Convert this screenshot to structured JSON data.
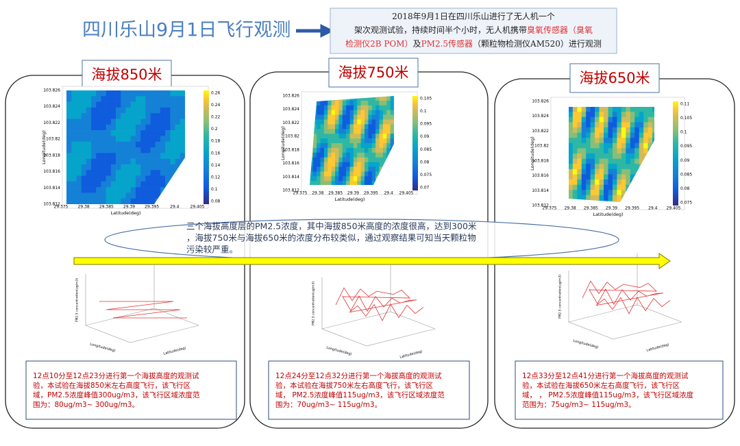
{
  "header": {
    "title": "四川乐山9月1日飞行观测",
    "summary_lines": [
      [
        {
          "text": "2018年9月1日在四川乐山进行了无人机一个",
          "color": "#222222"
        }
      ],
      [
        {
          "text": "架次观测试验，持续时间半个小时，无人机携带",
          "color": "#222222"
        },
        {
          "text": "臭氧传感器（臭氧",
          "color": "#e03030"
        }
      ],
      [
        {
          "text": "检测仪2B POM）",
          "color": "#e03030"
        },
        {
          "text": "及",
          "color": "#222222"
        },
        {
          "text": "PM2.5传感器",
          "color": "#e03030"
        },
        {
          "text": "（颗粒物检测仪AM520）进行观测",
          "color": "#222222"
        }
      ]
    ]
  },
  "panels": [
    {
      "label": "海拔850米",
      "heatmap": {
        "y_label": "Longitude(deg)",
        "x_label": "Latitude(deg)",
        "xticks": [
          "29.375",
          "29.38",
          "29.385",
          "29.39",
          "29.395",
          "29.4",
          "29.405"
        ],
        "yticks": [
          "103.812",
          "103.814",
          "103.816",
          "103.818",
          "103.82",
          "103.822",
          "103.824",
          "103.826"
        ],
        "colorbar_ticks": [
          "0.08",
          "0.1",
          "0.12",
          "0.14",
          "0.16",
          "0.18",
          "0.2",
          "0.22",
          "0.24",
          "0.26"
        ]
      },
      "plot3d": {
        "z_label": "PM2.5 concentration(ug/m3)",
        "x_label": "Longitude(deg)",
        "y_label": "Latitude(deg)"
      },
      "description": [
        "12点10分至12点23分进行第一个海拔高度的观测试",
        "验，本试验在海拔850米左右高度飞行，该飞行区",
        "域，PM2.5浓度峰值300ug/m3，该飞行区域浓度范",
        "围为：80ug/m3~ 300ug/m3。"
      ]
    },
    {
      "label": "海拔750米",
      "heatmap": {
        "y_label": "Longitude(deg)",
        "x_label": "Latitude(deg)",
        "xticks": [
          "29.375",
          "29.38",
          "29.385",
          "29.39",
          "29.395",
          "29.4",
          "29.405"
        ],
        "yticks": [
          "103.812",
          "103.814",
          "103.816",
          "103.818",
          "103.82",
          "103.822",
          "103.824",
          "103.826"
        ],
        "colorbar_ticks": [
          "0.07",
          "0.075",
          "0.08",
          "0.085",
          "0.09",
          "0.095",
          "0.1",
          "0.105"
        ]
      },
      "plot3d": {
        "z_label": "PM2.5 concentration(ug/m3)",
        "x_label": "Longitude(deg)",
        "y_label": "Latitude(deg)"
      },
      "description": [
        "12点24分至12点32分进行第一个海拔高度的观测试",
        "验，本试验在海拔750米左右高度飞行，该飞行区",
        "域，  PM2.5浓度峰值115ug/m3，该飞行区域浓度范",
        "围为：70ug/m3~ 115ug/m3。"
      ]
    },
    {
      "label": "海拔650米",
      "heatmap": {
        "y_label": "Longitude(deg)",
        "x_label": "Latitude(deg)",
        "xticks": [
          "29.375",
          "29.38",
          "29.385",
          "29.39",
          "29.395",
          "29.4",
          "29.405"
        ],
        "yticks": [
          "103.812",
          "103.814",
          "103.816",
          "103.818",
          "103.82",
          "103.822",
          "103.824",
          "103.826"
        ],
        "colorbar_ticks": [
          "0.075",
          "0.08",
          "0.085",
          "0.09",
          "0.095",
          "0.1",
          "0.105",
          "0.11"
        ]
      },
      "plot3d": {
        "z_label": "PM2.5 concentration(ug/m3)",
        "x_label": "Longitude(deg)",
        "y_label": "Latitude(deg)"
      },
      "description": [
        "12点33分至12点41分进行第一个海拔高度的观测试",
        "验，本试验在海拔650米左右高度飞行，该飞行区",
        "域，  ，  PM2.5浓度峰值115ug/m3，该飞行区域浓度",
        "范围为：75ug/m3~ 115ug/m3。"
      ]
    }
  ],
  "finding": [
    "三个海拔高度层的PM2.5浓度，其中海拔850米高度的浓度很高，达到300米",
    "，海拔750米与海拔650米的浓度分布较类似，通过观察结果可知当天颗粒物",
    "污染较严重。"
  ]
}
